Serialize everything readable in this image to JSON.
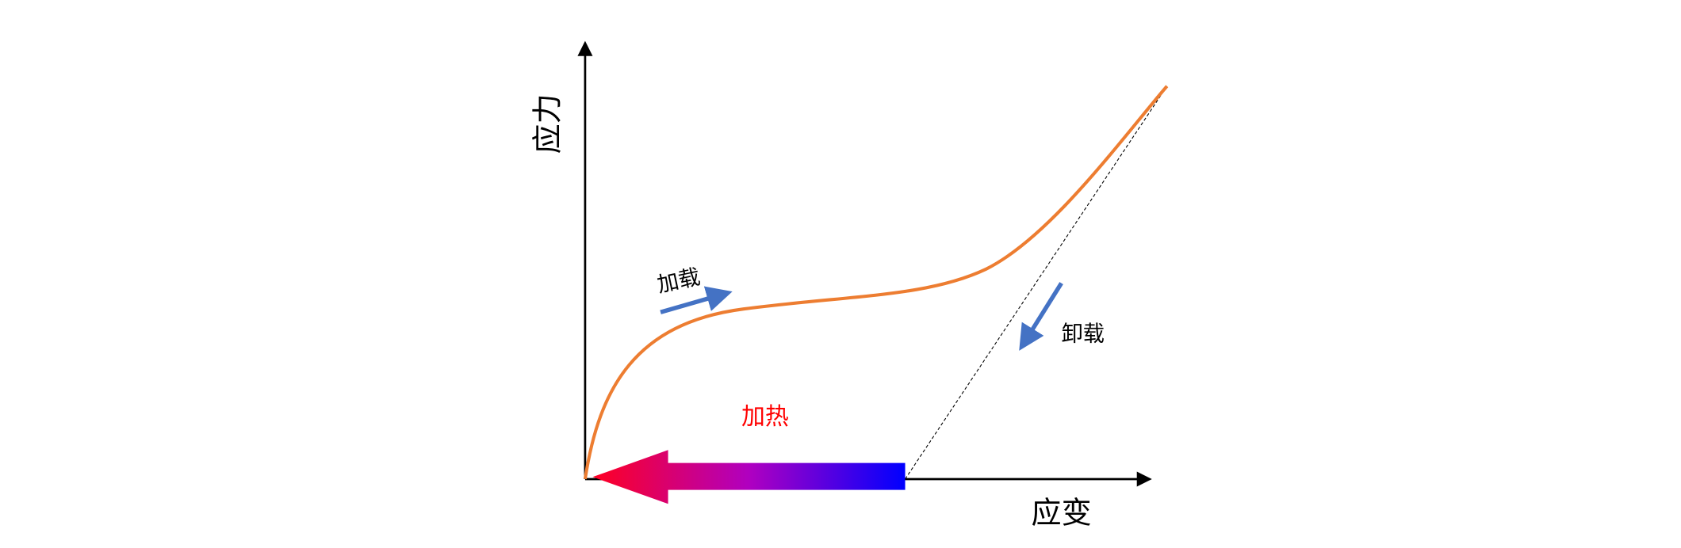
{
  "axes": {
    "y_label": "应力",
    "x_label": "应变"
  },
  "annotations": {
    "loading": "加载",
    "unloading": "卸载",
    "heating": "加热"
  }
}
